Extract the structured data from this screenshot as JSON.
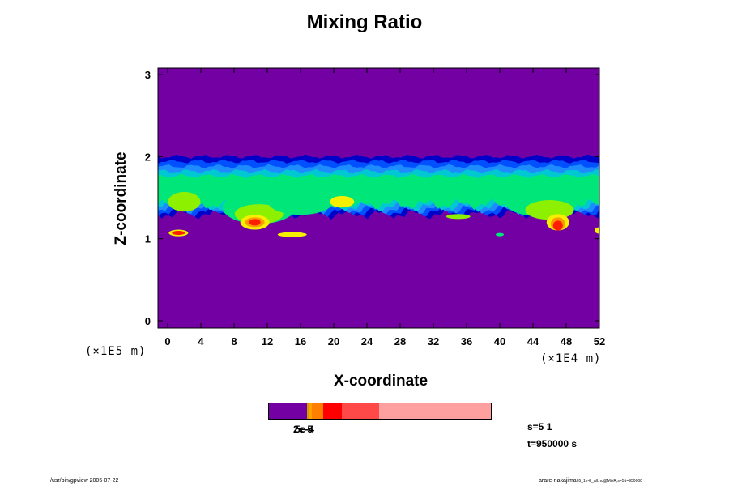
{
  "chart_data": {
    "type": "heatmap",
    "title": "Mixing Ratio",
    "xlabel": "X-coordinate",
    "ylabel": "Z-coordinate",
    "x_unit": "(×1E4 m)",
    "y_unit": "(×1E5 m)",
    "x_ticks": [
      "0",
      "4",
      "8",
      "12",
      "16",
      "20",
      "24",
      "28",
      "32",
      "36",
      "40",
      "44",
      "48",
      "52"
    ],
    "y_ticks": [
      "0",
      "1",
      "2",
      "3"
    ],
    "xlim": [
      0,
      52
    ],
    "ylim": [
      0,
      3
    ],
    "background_color": "#7300a3",
    "layer": {
      "base_z": 1.3,
      "top_z": 2.0,
      "description_colors": [
        "#0000c8",
        "#0050ff",
        "#1e8cff",
        "#00c8d2",
        "#00e678",
        "#8cf000",
        "#f5f000",
        "#ff9b00",
        "#ff1e00"
      ]
    },
    "colorbar": {
      "segments": [
        {
          "color": "#7300a3",
          "fraction": 0.17
        },
        {
          "color": "#c8a000",
          "fraction": 0.01
        },
        {
          "color": "#ffa000",
          "fraction": 0.015
        },
        {
          "color": "#ff8000",
          "fraction": 0.05
        },
        {
          "color": "#ff0000",
          "fraction": 0.085
        },
        {
          "color": "#ff4848",
          "fraction": 0.165
        },
        {
          "color": "#ffa0a0",
          "fraction": 0.505
        }
      ],
      "label_overlap_1": "2e-5",
      "label_overlap_2": "5e-4"
    },
    "annotation_s": "s=5 1",
    "annotation_t": "t=950000 s"
  },
  "footer": {
    "left": "/usr/bin/gpview 2005-07-22",
    "right": "arare-nakajima",
    "right_small": "05_1e-8_all.nc@MixR,s=5,t=950000"
  }
}
